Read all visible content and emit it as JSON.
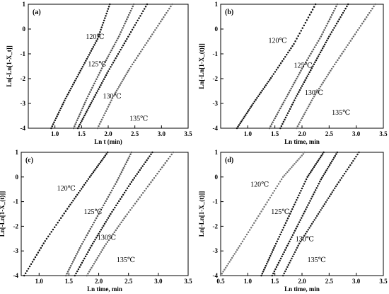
{
  "chart_data": [
    {
      "type": "scatter",
      "panel": "(a)",
      "xlabel": "Ln t (min)",
      "ylabel": "Ln[-Ln[1-X_t]]",
      "xlim": [
        0.5,
        3.5
      ],
      "ylim": [
        -4,
        1
      ],
      "xticks": [
        "1.0",
        "1.5",
        "2.0",
        "2.5",
        "3.0",
        "3.5"
      ],
      "yticks": [
        "1",
        "0",
        "-1",
        "-2",
        "-3",
        "-4"
      ],
      "series": [
        {
          "name": "120℃",
          "color": "#111111",
          "x": [
            0.93,
            1.2,
            1.5,
            1.8,
            2.03
          ],
          "y": [
            -4.0,
            -2.8,
            -1.6,
            -0.4,
            1.0
          ]
        },
        {
          "name": "125℃",
          "color": "#555555",
          "x": [
            1.35,
            1.6,
            1.9,
            2.2,
            2.48
          ],
          "y": [
            -4.0,
            -2.8,
            -1.5,
            -0.3,
            1.0
          ]
        },
        {
          "name": "130℃",
          "color": "#111111",
          "x": [
            1.43,
            1.7,
            2.0,
            2.35,
            2.73
          ],
          "y": [
            -4.0,
            -2.9,
            -1.7,
            -0.4,
            1.0
          ]
        },
        {
          "name": "135℃",
          "color": "#666666",
          "x": [
            1.8,
            2.1,
            2.4,
            2.8,
            3.2
          ],
          "y": [
            -4.0,
            -2.7,
            -1.6,
            -0.3,
            1.0
          ]
        }
      ],
      "annotations": [
        "120℃",
        "125℃",
        "130℃",
        "135℃"
      ]
    },
    {
      "type": "scatter",
      "panel": "(b)",
      "xlabel": "Ln time, min",
      "ylabel": "Ln[-Ln[1-X_(t)]]",
      "xlim": [
        0.5,
        3.5
      ],
      "ylim": [
        -4,
        1
      ],
      "xticks": [
        "1.0",
        "1.5",
        "2.0",
        "2.5",
        "3.0",
        "3.5"
      ],
      "yticks": [
        "1",
        "0",
        "-1",
        "-2",
        "-3",
        "-4"
      ],
      "series": [
        {
          "name": "120℃",
          "color": "#111111",
          "x": [
            0.8,
            1.1,
            1.45,
            1.85,
            2.25
          ],
          "y": [
            -4.0,
            -3.0,
            -1.9,
            -0.6,
            1.0
          ]
        },
        {
          "name": "125℃",
          "color": "#555555",
          "x": [
            1.4,
            1.7,
            2.0,
            2.35,
            2.65
          ],
          "y": [
            -4.0,
            -2.8,
            -1.6,
            -0.3,
            1.0
          ]
        },
        {
          "name": "130℃",
          "color": "#111111",
          "x": [
            1.6,
            1.9,
            2.2,
            2.5,
            2.85
          ],
          "y": [
            -4.0,
            -2.7,
            -1.5,
            -0.3,
            1.0
          ]
        },
        {
          "name": "135℃",
          "color": "#666666",
          "x": [
            1.9,
            2.2,
            2.55,
            2.95,
            3.35
          ],
          "y": [
            -4.0,
            -2.8,
            -1.6,
            -0.3,
            1.0
          ]
        }
      ],
      "annotations": [
        "120℃",
        "125℃",
        "130℃",
        "135℃"
      ]
    },
    {
      "type": "scatter",
      "panel": "(c)",
      "xlabel": "Ln time, min",
      "ylabel": "Ln[-Ln[1-X_(t)]]",
      "xlim": [
        0.7,
        3.5
      ],
      "ylim": [
        -4,
        1
      ],
      "xticks": [
        "1.0",
        "1.5",
        "2.0",
        "2.5",
        "3.0",
        "3.5"
      ],
      "yticks": [
        "1",
        "0",
        "-1",
        "-2",
        "-3",
        "-4"
      ],
      "series": [
        {
          "name": "120℃",
          "color": "#111111",
          "x": [
            0.75,
            1.1,
            1.5,
            1.85,
            2.15
          ],
          "y": [
            -4.0,
            -2.6,
            -1.2,
            0.0,
            1.0
          ]
        },
        {
          "name": "125℃",
          "color": "#555555",
          "x": [
            1.45,
            1.7,
            2.0,
            2.3,
            2.55
          ],
          "y": [
            -4.0,
            -2.8,
            -1.5,
            -0.2,
            1.0
          ]
        },
        {
          "name": "130℃",
          "color": "#111111",
          "x": [
            1.6,
            1.9,
            2.2,
            2.55,
            2.9
          ],
          "y": [
            -4.0,
            -2.7,
            -1.5,
            -0.2,
            1.0
          ]
        },
        {
          "name": "135℃",
          "color": "#666666",
          "x": [
            1.8,
            2.1,
            2.45,
            2.85,
            3.25
          ],
          "y": [
            -4.0,
            -2.8,
            -1.6,
            -0.3,
            1.0
          ]
        }
      ],
      "annotations": [
        "120℃",
        "125℃",
        "130℃",
        "135℃"
      ]
    },
    {
      "type": "scatter",
      "panel": "(d)",
      "xlabel": "Ln time, min",
      "ylabel": "Ln[-Ln[1-X_(t)]]",
      "xlim": [
        0.5,
        3.5
      ],
      "ylim": [
        -4,
        1
      ],
      "xticks": [
        "0.5",
        "1.0",
        "1.5",
        "2.0",
        "2.5",
        "3.0",
        "3.5"
      ],
      "yticks": [
        "1",
        "0",
        "-1",
        "-2",
        "-3",
        "-4"
      ],
      "series": [
        {
          "name": "120℃",
          "color": "#777777",
          "x": [
            0.5,
            0.85,
            1.25,
            1.65,
            2.05
          ],
          "y": [
            -4.0,
            -2.8,
            -1.4,
            0.0,
            1.0
          ]
        },
        {
          "name": "125℃",
          "color": "#111111",
          "x": [
            1.25,
            1.5,
            1.8,
            2.1,
            2.4
          ],
          "y": [
            -4.0,
            -2.8,
            -1.4,
            0.0,
            1.0
          ]
        },
        {
          "name": "130℃",
          "color": "#111111",
          "x": [
            1.45,
            1.75,
            2.05,
            2.35,
            2.65
          ],
          "y": [
            -4.0,
            -2.7,
            -1.4,
            -0.1,
            1.0
          ]
        },
        {
          "name": "135℃",
          "color": "#222222",
          "x": [
            1.65,
            1.95,
            2.3,
            2.65,
            3.05
          ],
          "y": [
            -4.0,
            -2.7,
            -1.5,
            -0.3,
            1.0
          ]
        }
      ],
      "annotations": [
        "120℃",
        "125℃",
        "130℃",
        "135℃"
      ]
    }
  ]
}
